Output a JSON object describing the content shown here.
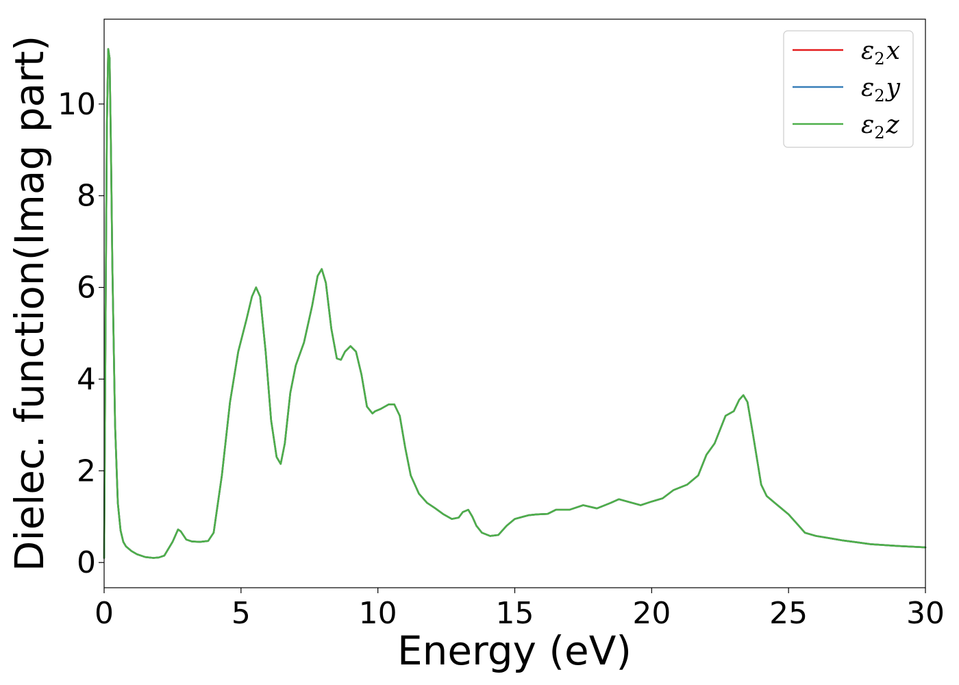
{
  "chart_data": {
    "type": "line",
    "title": "",
    "xlabel": "Energy (eV)",
    "ylabel": "Dielec. function(Imag part)",
    "xlim": [
      0,
      30
    ],
    "ylim": [
      -0.55,
      11.85
    ],
    "xticks": [
      0,
      5,
      10,
      15,
      20,
      25,
      30
    ],
    "yticks": [
      0,
      2,
      4,
      6,
      8,
      10
    ],
    "grid": false,
    "legend_position": "top-right",
    "series": [
      {
        "name": "ε2x",
        "legend_main": "ε",
        "legend_sub": "2",
        "legend_var": "x",
        "color": "#e41a1c"
      },
      {
        "name": "ε2y",
        "legend_main": "ε",
        "legend_sub": "2",
        "legend_var": "y",
        "color": "#377eb8"
      },
      {
        "name": "ε2z",
        "legend_main": "ε",
        "legend_sub": "2",
        "legend_var": "z",
        "color": "#4daf4a"
      }
    ],
    "x": [
      0,
      0.05,
      0.1,
      0.15,
      0.2,
      0.25,
      0.3,
      0.4,
      0.5,
      0.6,
      0.7,
      0.8,
      1.0,
      1.2,
      1.5,
      1.8,
      2.0,
      2.2,
      2.5,
      2.7,
      2.8,
      3.0,
      3.2,
      3.5,
      3.8,
      4.0,
      4.3,
      4.6,
      4.9,
      5.2,
      5.4,
      5.55,
      5.7,
      5.9,
      6.1,
      6.3,
      6.45,
      6.6,
      6.8,
      7.0,
      7.3,
      7.6,
      7.8,
      7.95,
      8.1,
      8.3,
      8.5,
      8.65,
      8.8,
      9.0,
      9.2,
      9.4,
      9.6,
      9.8,
      9.9,
      10.1,
      10.4,
      10.6,
      10.8,
      11.0,
      11.2,
      11.5,
      11.8,
      12.1,
      12.4,
      12.7,
      12.95,
      13.1,
      13.3,
      13.45,
      13.6,
      13.8,
      14.1,
      14.4,
      14.7,
      15.0,
      15.5,
      15.8,
      16.2,
      16.5,
      17.0,
      17.5,
      18.0,
      18.5,
      18.8,
      19.3,
      19.6,
      20.0,
      20.4,
      20.8,
      21.3,
      21.7,
      22.0,
      22.3,
      22.7,
      23.0,
      23.2,
      23.35,
      23.5,
      23.7,
      24.0,
      24.2,
      24.5,
      24.8,
      25.0,
      25.3,
      25.6,
      26.0,
      26.5,
      27.0,
      27.5,
      28.0,
      29.0,
      30.0
    ],
    "values": [
      0.1,
      5.0,
      9.5,
      11.2,
      11.0,
      9.0,
      6.5,
      3.0,
      1.3,
      0.7,
      0.45,
      0.35,
      0.25,
      0.18,
      0.12,
      0.1,
      0.11,
      0.15,
      0.45,
      0.72,
      0.68,
      0.5,
      0.46,
      0.45,
      0.47,
      0.65,
      1.9,
      3.5,
      4.6,
      5.3,
      5.8,
      6.0,
      5.8,
      4.6,
      3.1,
      2.3,
      2.15,
      2.6,
      3.7,
      4.3,
      4.8,
      5.6,
      6.25,
      6.4,
      6.1,
      5.1,
      4.45,
      4.42,
      4.6,
      4.72,
      4.6,
      4.1,
      3.4,
      3.25,
      3.3,
      3.35,
      3.45,
      3.45,
      3.2,
      2.5,
      1.9,
      1.5,
      1.3,
      1.18,
      1.05,
      0.95,
      0.98,
      1.1,
      1.15,
      1.0,
      0.8,
      0.65,
      0.58,
      0.6,
      0.8,
      0.95,
      1.03,
      1.05,
      1.06,
      1.15,
      1.15,
      1.25,
      1.18,
      1.3,
      1.38,
      1.3,
      1.25,
      1.33,
      1.4,
      1.58,
      1.7,
      1.9,
      2.35,
      2.6,
      3.2,
      3.3,
      3.55,
      3.65,
      3.5,
      2.8,
      1.7,
      1.45,
      1.3,
      1.15,
      1.05,
      0.85,
      0.65,
      0.58,
      0.53,
      0.48,
      0.44,
      0.4,
      0.36,
      0.33
    ]
  }
}
